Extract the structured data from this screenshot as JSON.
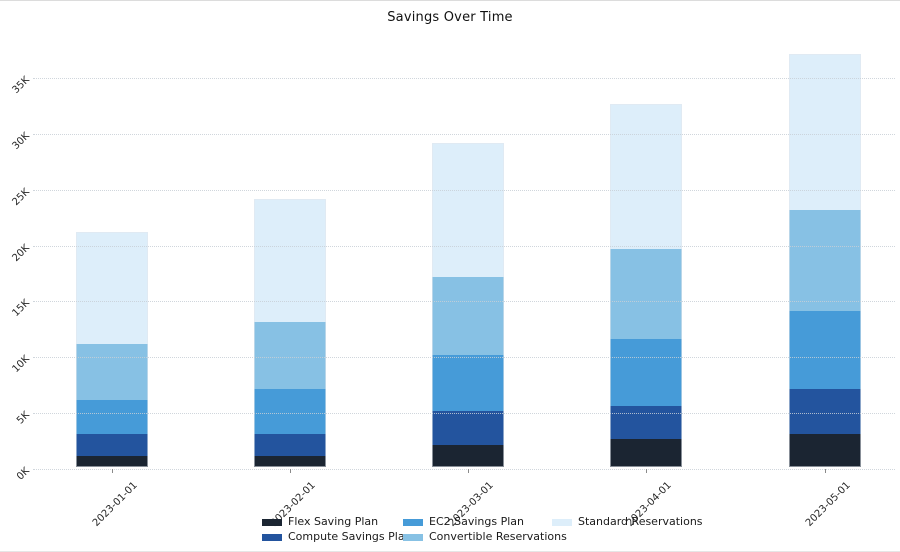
{
  "title": "Savings Over Time",
  "chart_data": {
    "type": "bar",
    "stacked": true,
    "title": "Savings Over Time",
    "unit": "K",
    "categories": [
      "2023-01-01",
      "2023-02-01",
      "2023-03-01",
      "2023-04-01",
      "2023-05-01"
    ],
    "series": [
      {
        "name": "Flex Saving Plan",
        "color": "#1b2532",
        "values": [
          1,
          1,
          2,
          2.5,
          3
        ]
      },
      {
        "name": "Compute Savings Plan",
        "color": "#23549e",
        "values": [
          2,
          2,
          3,
          3,
          4
        ]
      },
      {
        "name": "EC2 Savings Plan",
        "color": "#469bd8",
        "values": [
          3,
          4,
          5,
          6,
          7
        ]
      },
      {
        "name": "Convertible Reservations",
        "color": "#87c1e4",
        "values": [
          5,
          6,
          7,
          8,
          9
        ]
      },
      {
        "name": "Standard Reservations",
        "color": "#ddeefa",
        "values": [
          10,
          11,
          12,
          13,
          14
        ]
      }
    ],
    "stack_totals": [
      21,
      24,
      29,
      32.5,
      37
    ],
    "xlabel": "",
    "ylabel": "",
    "yticks": [
      "0K",
      "5K",
      "10K",
      "15K",
      "20K",
      "25K",
      "30K",
      "35K"
    ],
    "ytick_step": 5,
    "ylim": [
      0,
      38.8
    ],
    "grid": "dotted-horizontal",
    "tick_rotation_deg": 45,
    "legend_position": "bottom",
    "legend_columns": [
      [
        "Flex Saving Plan",
        "Compute Savings Plan"
      ],
      [
        "EC2 Savings Plan",
        "Convertible Reservations"
      ],
      [
        "Standard Reservations"
      ]
    ]
  }
}
